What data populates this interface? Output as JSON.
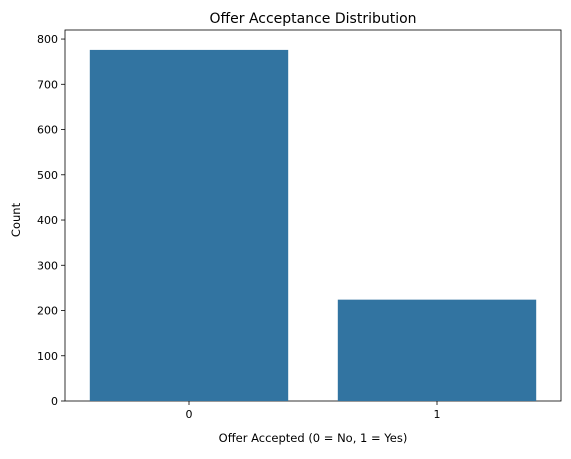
{
  "chart_data": {
    "type": "bar",
    "title": "Offer Acceptance Distribution",
    "xlabel": "Offer Accepted (0 = No, 1 = Yes)",
    "ylabel": "Count",
    "categories": [
      "0",
      "1"
    ],
    "values": [
      776,
      224
    ],
    "ylim": [
      0,
      820
    ],
    "yticks": [
      0,
      100,
      200,
      300,
      400,
      500,
      600,
      700,
      800
    ],
    "grid": false,
    "legend": "none",
    "bar_color": "#3274a1"
  }
}
